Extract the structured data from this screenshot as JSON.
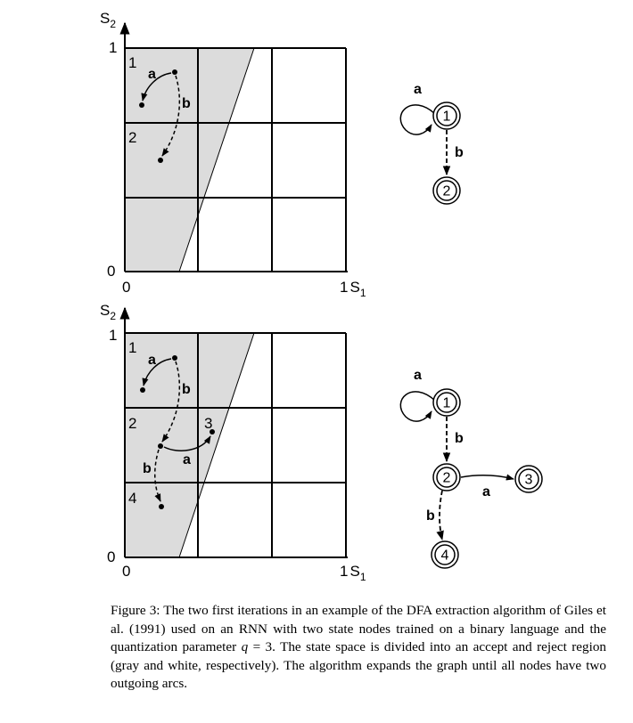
{
  "panel_top": {
    "axis_y_label": "S",
    "axis_y_sub": "2",
    "axis_x_label": "S",
    "axis_x_sub": "1",
    "tick_y_top": "1",
    "tick_y_bottom": "0",
    "tick_x_left": "0",
    "tick_x_right": "1",
    "region_labels": [
      "1",
      "2"
    ],
    "arc_labels": [
      "a",
      "b"
    ],
    "graph": {
      "nodes": [
        "1",
        "2"
      ],
      "arc_labels": [
        "a",
        "b"
      ]
    }
  },
  "panel_bottom": {
    "axis_y_label": "S",
    "axis_y_sub": "2",
    "axis_x_label": "S",
    "axis_x_sub": "1",
    "tick_y_top": "1",
    "tick_y_bottom": "0",
    "tick_x_left": "0",
    "tick_x_right": "1",
    "region_labels": [
      "1",
      "2",
      "3",
      "4"
    ],
    "arc_labels": [
      "a",
      "b",
      "a",
      "b"
    ],
    "graph": {
      "nodes": [
        "1",
        "2",
        "3",
        "4"
      ],
      "arc_labels": [
        "a",
        "b",
        "a",
        "b"
      ]
    }
  },
  "caption": {
    "label": "Figure 3:",
    "text_before_q": "The two first iterations in an example of the DFA extraction algorithm of Giles et al. (1991) used on an RNN with two state nodes trained on a binary language and the quantization parameter",
    "q_symbol": "q",
    "q_value": "= 3.",
    "text_after_q": "The state space is divided into an accept and reject region (gray and white, respectively). The algorithm expands the graph until all nodes have two outgoing arcs."
  },
  "colors": {
    "accept_region": "#dcdcdc",
    "reject_region": "#ffffff",
    "ink": "#000000"
  }
}
